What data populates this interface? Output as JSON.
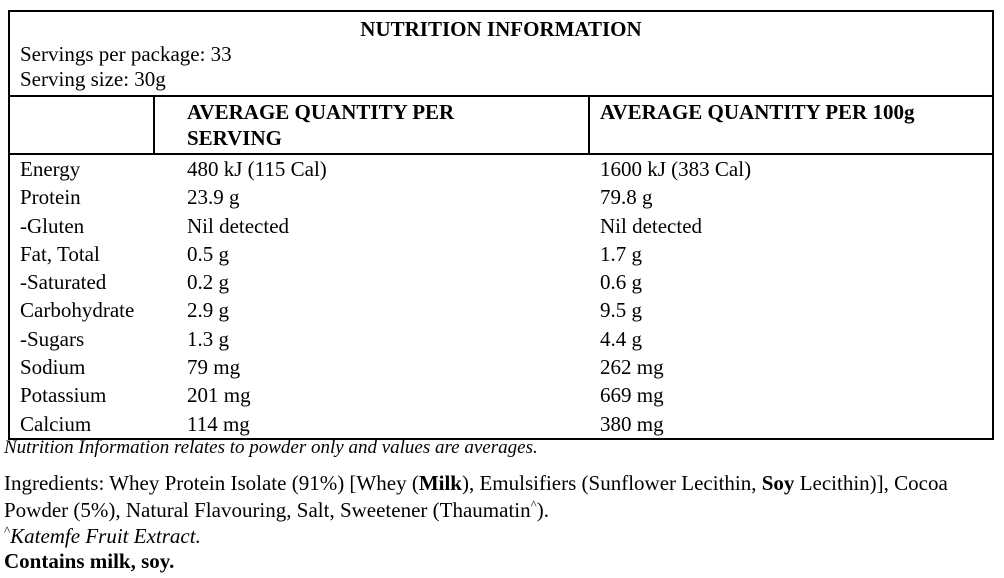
{
  "colors": {
    "background": "#ffffff",
    "text": "#000000",
    "border": "#000000"
  },
  "panel": {
    "title": "NUTRITION INFORMATION",
    "servings_per_package": "Servings per package: 33",
    "serving_size": "Serving size: 30g",
    "col_headers": {
      "per_serving": "AVERAGE QUANTITY PER SERVING",
      "per_100g": "AVERAGE QUANTITY PER 100g"
    },
    "rows": [
      {
        "nutrient": "Energy",
        "per_serving": "480 kJ (115 Cal)",
        "per_100g": "1600 kJ (383 Cal)"
      },
      {
        "nutrient": "Protein",
        "per_serving": "23.9 g",
        "per_100g": "79.8 g"
      },
      {
        "nutrient": "-Gluten",
        "per_serving": "Nil detected",
        "per_100g": "Nil detected"
      },
      {
        "nutrient": "Fat, Total",
        "per_serving": "0.5 g",
        "per_100g": "1.7 g"
      },
      {
        "nutrient": "-Saturated",
        "per_serving": "0.2 g",
        "per_100g": "0.6 g"
      },
      {
        "nutrient": "Carbohydrate",
        "per_serving": "2.9 g",
        "per_100g": "9.5 g"
      },
      {
        "nutrient": "-Sugars",
        "per_serving": "1.3 g",
        "per_100g": "4.4 g"
      },
      {
        "nutrient": "Sodium",
        "per_serving": "79 mg",
        "per_100g": "262 mg"
      },
      {
        "nutrient": "Potassium",
        "per_serving": "201 mg",
        "per_100g": "669 mg"
      },
      {
        "nutrient": "Calcium",
        "per_serving": "114 mg",
        "per_100g": "380 mg"
      }
    ]
  },
  "footnotes": {
    "note": "Nutrition Information relates to powder only and values are averages.",
    "ingredients_segments": [
      "Ingredients: Whey Protein Isolate (91%) [Whey (",
      "Milk",
      "), Emulsifiers (Sunflower Lecithin, ",
      "Soy",
      " Lecithin)], Cocoa",
      "Powder (5%), Natural Flavouring, Salt, Sweetener (Thaumatin",
      "^",
      ")."
    ],
    "katemfe_caret": "^",
    "katemfe_text": "Katemfe Fruit Extract.",
    "contains": "Contains milk, soy."
  }
}
